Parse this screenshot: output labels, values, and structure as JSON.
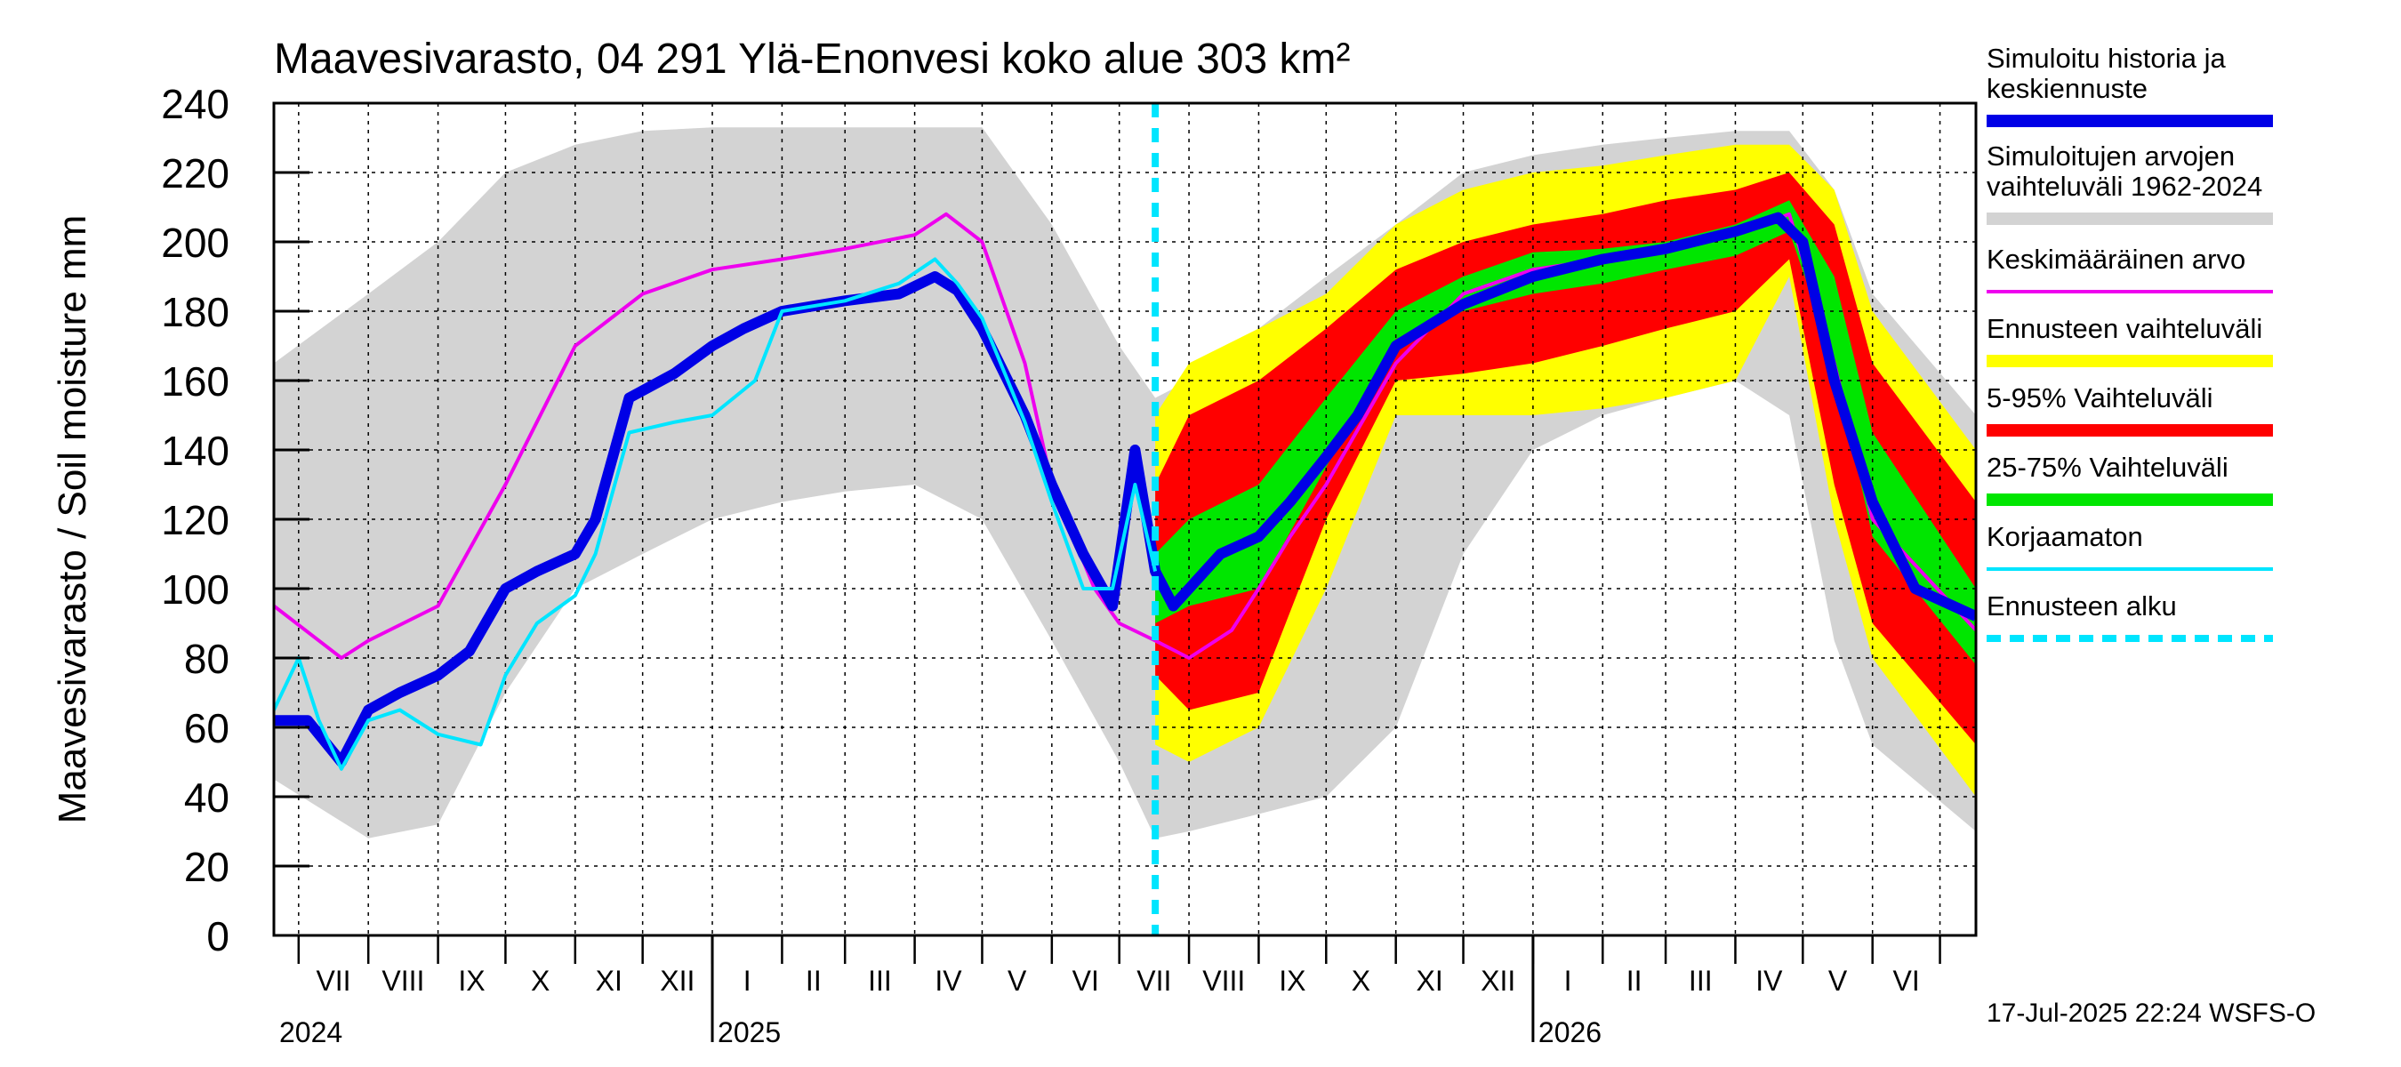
{
  "chart_data": {
    "type": "area",
    "title": "Maavesivarasto, 04 291 Ylä-Enonvesi koko alue 303 km²",
    "ylabel": "Maavesivarasto / Soil moisture   mm",
    "ylim": [
      0,
      240
    ],
    "y_ticks": [
      0,
      20,
      40,
      60,
      80,
      100,
      120,
      140,
      160,
      180,
      200,
      220,
      240
    ],
    "x_range": [
      "2024-06-20",
      "2026-07-17"
    ],
    "months": [
      "VII",
      "VIII",
      "IX",
      "X",
      "XI",
      "XII",
      "I",
      "II",
      "III",
      "IV",
      "V",
      "VI",
      "VII",
      "VIII",
      "IX",
      "X",
      "XI",
      "XII",
      "I",
      "II",
      "III",
      "IV",
      "V",
      "VI"
    ],
    "years": [
      "2024",
      "2025",
      "2026"
    ],
    "forecast_start": "2025-07-17",
    "grid": true,
    "legend_position": "right",
    "colors": {
      "history": "#0000e6",
      "range": "#d3d3d3",
      "mean": "#ee00ee",
      "forecast_range": "#ffff00",
      "p5_95": "#ff0000",
      "p25_75": "#00e600",
      "uncorrected": "#00e5ff",
      "forecast_start": "#00e5ff"
    },
    "series": [
      {
        "name": "Simuloitu historia ja keskiennuste",
        "x": [
          "2024-06-20",
          "2024-07-05",
          "2024-07-20",
          "2024-08-01",
          "2024-08-15",
          "2024-09-01",
          "2024-09-15",
          "2024-10-01",
          "2024-10-15",
          "2024-11-01",
          "2024-11-10",
          "2024-11-25",
          "2024-12-15",
          "2025-01-01",
          "2025-01-15",
          "2025-02-01",
          "2025-03-01",
          "2025-03-25",
          "2025-04-10",
          "2025-04-20",
          "2025-05-01",
          "2025-05-20",
          "2025-06-01",
          "2025-06-15",
          "2025-06-28",
          "2025-07-08",
          "2025-07-17",
          "2025-07-25",
          "2025-08-15",
          "2025-09-01",
          "2025-09-15",
          "2025-10-01",
          "2025-10-15",
          "2025-11-01",
          "2025-12-01",
          "2026-01-01",
          "2026-02-01",
          "2026-03-01",
          "2026-04-01",
          "2026-04-20",
          "2026-05-01",
          "2026-05-15",
          "2026-06-01",
          "2026-06-20",
          "2026-07-17"
        ],
        "y": [
          62,
          62,
          50,
          65,
          70,
          75,
          82,
          100,
          105,
          110,
          120,
          155,
          162,
          170,
          175,
          180,
          183,
          185,
          190,
          186,
          175,
          150,
          130,
          110,
          95,
          140,
          105,
          95,
          110,
          115,
          125,
          138,
          150,
          170,
          182,
          190,
          195,
          198,
          203,
          207,
          200,
          160,
          125,
          100,
          92
        ]
      },
      {
        "name": "Simuloitujen arvojen vaihteluväli 1962-2024",
        "x": [
          "2024-06-20",
          "2024-08-01",
          "2024-09-01",
          "2024-10-01",
          "2024-11-01",
          "2024-12-01",
          "2025-01-01",
          "2025-02-01",
          "2025-03-01",
          "2025-04-01",
          "2025-05-01",
          "2025-06-01",
          "2025-07-01",
          "2025-07-17",
          "2025-08-01",
          "2025-09-01",
          "2025-10-01",
          "2025-11-01",
          "2025-12-01",
          "2026-01-01",
          "2026-02-01",
          "2026-03-01",
          "2026-04-01",
          "2026-04-25",
          "2026-05-15",
          "2026-06-01",
          "2026-07-17"
        ],
        "low": [
          45,
          28,
          32,
          70,
          100,
          110,
          120,
          125,
          128,
          130,
          120,
          85,
          50,
          28,
          30,
          35,
          40,
          60,
          110,
          140,
          150,
          155,
          160,
          150,
          85,
          55,
          30
        ],
        "high": [
          165,
          185,
          200,
          220,
          228,
          232,
          233,
          233,
          233,
          233,
          233,
          205,
          170,
          155,
          160,
          175,
          190,
          205,
          220,
          225,
          228,
          230,
          232,
          232,
          215,
          185,
          150
        ]
      },
      {
        "name": "Keskimääräinen arvo",
        "x": [
          "2024-06-20",
          "2024-07-20",
          "2024-08-01",
          "2024-09-01",
          "2024-10-01",
          "2024-11-01",
          "2024-12-01",
          "2025-01-01",
          "2025-02-01",
          "2025-03-01",
          "2025-04-01",
          "2025-04-15",
          "2025-05-01",
          "2025-05-20",
          "2025-06-01",
          "2025-06-20",
          "2025-07-01",
          "2025-07-17",
          "2025-08-01",
          "2025-08-20",
          "2025-09-01",
          "2025-09-15",
          "2025-10-01",
          "2025-11-01",
          "2025-12-01",
          "2026-01-01",
          "2026-02-01",
          "2026-03-01",
          "2026-04-01",
          "2026-04-25",
          "2026-05-15",
          "2026-06-01",
          "2026-07-17"
        ],
        "y": [
          95,
          80,
          85,
          95,
          130,
          170,
          185,
          192,
          195,
          198,
          202,
          208,
          200,
          165,
          130,
          100,
          90,
          85,
          80,
          88,
          100,
          115,
          130,
          165,
          185,
          192,
          195,
          198,
          202,
          208,
          165,
          120,
          88
        ]
      },
      {
        "name": "Ennusteen vaihteluväli",
        "x": [
          "2025-07-17",
          "2025-08-01",
          "2025-09-01",
          "2025-10-01",
          "2025-11-01",
          "2025-12-01",
          "2026-01-01",
          "2026-02-01",
          "2026-03-01",
          "2026-04-01",
          "2026-04-25",
          "2026-05-15",
          "2026-06-01",
          "2026-07-17"
        ],
        "low": [
          55,
          50,
          60,
          100,
          150,
          150,
          150,
          152,
          155,
          160,
          190,
          120,
          80,
          40
        ],
        "high": [
          150,
          165,
          175,
          185,
          205,
          215,
          220,
          222,
          225,
          228,
          228,
          215,
          180,
          140
        ]
      },
      {
        "name": "5-95% Vaihteluväli",
        "x": [
          "2025-07-17",
          "2025-08-01",
          "2025-09-01",
          "2025-10-01",
          "2025-11-01",
          "2025-12-01",
          "2026-01-01",
          "2026-02-01",
          "2026-03-01",
          "2026-04-01",
          "2026-04-25",
          "2026-05-15",
          "2026-06-01",
          "2026-07-17"
        ],
        "low": [
          75,
          65,
          70,
          120,
          160,
          162,
          165,
          170,
          175,
          180,
          195,
          130,
          90,
          55
        ],
        "high": [
          130,
          150,
          160,
          175,
          192,
          200,
          205,
          208,
          212,
          215,
          220,
          205,
          165,
          125
        ]
      },
      {
        "name": "25-75% Vaihteluväli",
        "x": [
          "2025-07-17",
          "2025-08-01",
          "2025-09-01",
          "2025-10-01",
          "2025-11-01",
          "2025-12-01",
          "2026-01-01",
          "2026-02-01",
          "2026-03-01",
          "2026-04-01",
          "2026-04-25",
          "2026-05-15",
          "2026-06-01",
          "2026-07-17"
        ],
        "low": [
          90,
          95,
          100,
          135,
          172,
          180,
          185,
          188,
          192,
          196,
          203,
          165,
          115,
          78
        ],
        "high": [
          110,
          120,
          130,
          155,
          180,
          190,
          197,
          198,
          200,
          205,
          212,
          190,
          145,
          100
        ]
      },
      {
        "name": "Korjaamaton",
        "x": [
          "2024-06-20",
          "2024-07-01",
          "2024-07-10",
          "2024-07-20",
          "2024-08-01",
          "2024-08-15",
          "2024-09-01",
          "2024-09-20",
          "2024-10-01",
          "2024-10-15",
          "2024-11-01",
          "2024-11-10",
          "2024-11-25",
          "2024-12-15",
          "2025-01-01",
          "2025-01-20",
          "2025-02-01",
          "2025-03-01",
          "2025-03-25",
          "2025-04-10",
          "2025-04-20",
          "2025-05-01",
          "2025-05-20",
          "2025-06-01",
          "2025-06-15",
          "2025-06-28",
          "2025-07-08",
          "2025-07-17"
        ],
        "y": [
          65,
          80,
          62,
          48,
          62,
          65,
          58,
          55,
          75,
          90,
          98,
          110,
          145,
          148,
          150,
          160,
          180,
          183,
          188,
          195,
          188,
          178,
          148,
          125,
          100,
          100,
          130,
          105
        ]
      }
    ]
  },
  "legend": {
    "history": "Simuloitu historia ja keskiennuste",
    "range": "Simuloitujen arvojen vaihteluväli 1962-2024",
    "mean": "Keskimääräinen arvo",
    "forecast_range": "Ennusteen vaihteluväli",
    "p5_95": "5-95% Vaihteluväli",
    "p25_75": "25-75% Vaihteluväli",
    "uncorrected": "Korjaamaton",
    "forecast_start": "Ennusteen alku"
  },
  "footer": "17-Jul-2025 22:24 WSFS-O"
}
